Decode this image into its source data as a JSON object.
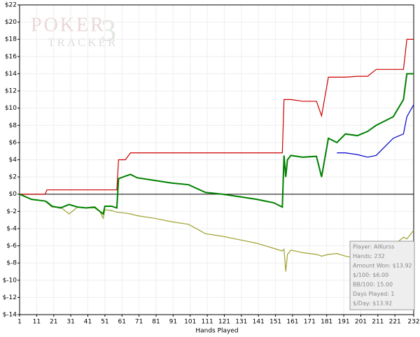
{
  "chart_data": {
    "type": "line",
    "logo": {
      "word1": "POKER",
      "digit": "3",
      "word2": "TRACKER"
    },
    "x_label": "Hands Played",
    "x": [
      1,
      8,
      16,
      17,
      20,
      25,
      30,
      35,
      40,
      45,
      48,
      50,
      51,
      55,
      58,
      59,
      63,
      66,
      70,
      80,
      90,
      100,
      110,
      120,
      130,
      140,
      150,
      155,
      156,
      157,
      158,
      160,
      167,
      175,
      178,
      182,
      187,
      192,
      199,
      205,
      210,
      215,
      220,
      226,
      228,
      232
    ],
    "series": [
      {
        "color": "#cc0000",
        "values": [
          0,
          0,
          0,
          0.5,
          0.5,
          0.5,
          0.5,
          0.5,
          0.5,
          0.5,
          0.5,
          0.5,
          0.5,
          0.5,
          0.5,
          4,
          4,
          4.8,
          4.8,
          4.8,
          4.8,
          4.8,
          4.8,
          4.8,
          4.8,
          4.8,
          4.8,
          4.8,
          11,
          11,
          11,
          11,
          10.8,
          10.8,
          9.1,
          13.6,
          13.6,
          13.6,
          13.7,
          13.7,
          14.5,
          14.5,
          14.5,
          14.5,
          18,
          18
        ]
      },
      {
        "color": "#a0a030",
        "values": [
          0,
          -0.6,
          -0.8,
          -1,
          -1.5,
          -1.5,
          -2.3,
          -1.5,
          -1.6,
          -1.6,
          -2,
          -2.8,
          -1.8,
          -1.9,
          -2.1,
          -2.1,
          -2.2,
          -2.3,
          -2.5,
          -2.8,
          -3.2,
          -3.5,
          -4.6,
          -4.9,
          -5.3,
          -5.7,
          -6.3,
          -6.6,
          -6.4,
          -9,
          -7,
          -6.5,
          -6.8,
          -7,
          -7.2,
          -7,
          -6.9,
          -7.2,
          -7.5,
          -6.2,
          -5.8,
          -5.5,
          -6,
          -5,
          -5.2,
          -4.2
        ]
      },
      {
        "color": "#0000cc",
        "values": [
          null,
          null,
          null,
          null,
          null,
          null,
          null,
          null,
          null,
          null,
          null,
          null,
          null,
          null,
          null,
          null,
          null,
          null,
          null,
          null,
          null,
          null,
          null,
          null,
          null,
          null,
          null,
          null,
          null,
          null,
          null,
          null,
          null,
          null,
          null,
          null,
          4.8,
          4.8,
          4.6,
          4.3,
          4.5,
          5.5,
          6.5,
          7,
          9,
          10.4
        ]
      },
      {
        "color": "#008000",
        "values": [
          0,
          -0.6,
          -0.8,
          -0.9,
          -1.4,
          -1.6,
          -1.2,
          -1.5,
          -1.6,
          -1.5,
          -2,
          -2.3,
          -1.4,
          -1.4,
          -1.6,
          1.8,
          2.1,
          2.3,
          1.9,
          1.6,
          1.3,
          1.1,
          0.2,
          0,
          -0.3,
          -0.6,
          -1,
          -1.5,
          4.5,
          2,
          4,
          4.5,
          4.3,
          4.4,
          2,
          6.5,
          6,
          7,
          6.8,
          7.3,
          8,
          8.5,
          9,
          11,
          14,
          14
        ]
      }
    ],
    "xlim": [
      1,
      232
    ],
    "xticks": [
      1,
      11,
      21,
      31,
      41,
      51,
      61,
      71,
      81,
      91,
      101,
      111,
      121,
      131,
      141,
      151,
      161,
      171,
      181,
      191,
      201,
      211,
      221,
      232
    ],
    "ylim": [
      -14,
      22
    ],
    "yticks": [
      {
        "value": -14,
        "label": "$-14"
      },
      {
        "value": -12,
        "label": "$-12"
      },
      {
        "value": -10,
        "label": "$-10"
      },
      {
        "value": -8,
        "label": "$-8"
      },
      {
        "value": -6,
        "label": "$-6"
      },
      {
        "value": -4,
        "label": "$-4"
      },
      {
        "value": -2,
        "label": "$-2"
      },
      {
        "value": 0,
        "label": "$0"
      },
      {
        "value": 2,
        "label": "$2"
      },
      {
        "value": 4,
        "label": "$4"
      },
      {
        "value": 6,
        "label": "$6"
      },
      {
        "value": 8,
        "label": "$8"
      },
      {
        "value": 10,
        "label": "$10"
      },
      {
        "value": 12,
        "label": "$12"
      },
      {
        "value": 14,
        "label": "$14"
      },
      {
        "value": 16,
        "label": "$16"
      },
      {
        "value": 18,
        "label": "$18"
      },
      {
        "value": 20,
        "label": "$20"
      },
      {
        "value": 22,
        "label": "$22"
      }
    ],
    "grid": true,
    "info_box": [
      "Player: AlKurss",
      "Hands: 232",
      "Amount Won: $13.92",
      "$/100: $6.00",
      "BB/100: 15.00",
      "Days Played: 1",
      "$/Day: $13.92"
    ]
  }
}
